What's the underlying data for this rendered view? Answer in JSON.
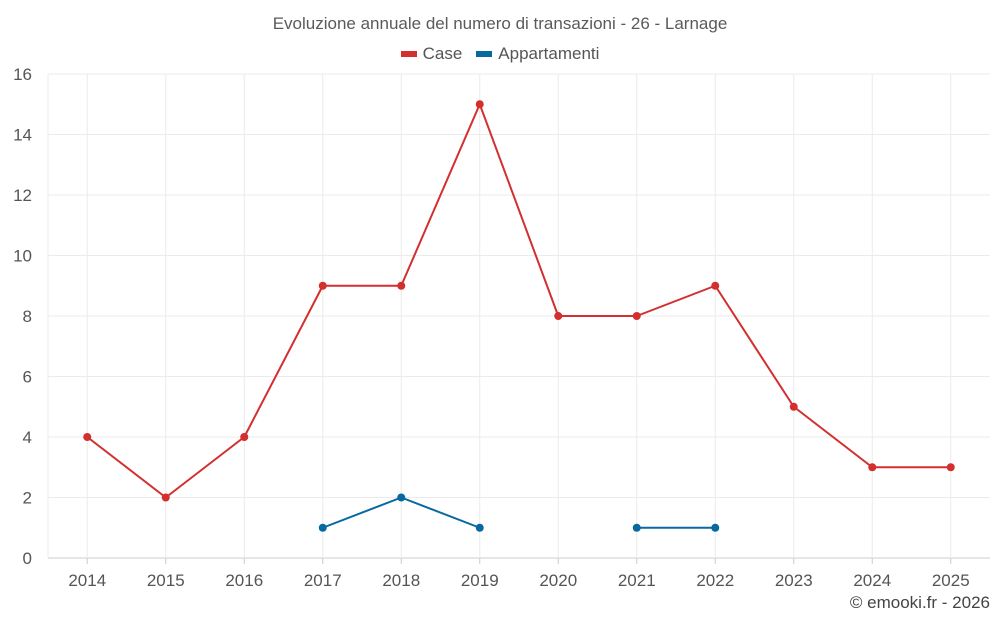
{
  "chart_data": {
    "type": "line",
    "title": "Evoluzione annuale del numero di transazioni - 26 - Larnage",
    "categories": [
      "2014",
      "2015",
      "2016",
      "2017",
      "2018",
      "2019",
      "2020",
      "2021",
      "2022",
      "2023",
      "2024",
      "2025"
    ],
    "series": [
      {
        "name": "Case",
        "color": "#d32f2f",
        "values": [
          4,
          2,
          4,
          9,
          9,
          15,
          8,
          8,
          9,
          5,
          3,
          3
        ]
      },
      {
        "name": "Appartamenti",
        "color": "#0868a0",
        "values": [
          null,
          null,
          null,
          1,
          2,
          1,
          null,
          1,
          1,
          null,
          null,
          null
        ]
      }
    ],
    "ylim": [
      0,
      16
    ],
    "yticks": [
      "0",
      "2",
      "4",
      "6",
      "8",
      "10",
      "12",
      "14",
      "16"
    ],
    "grid": true,
    "legend_position": "top-center"
  },
  "watermark": "© emooki.fr - 2026"
}
